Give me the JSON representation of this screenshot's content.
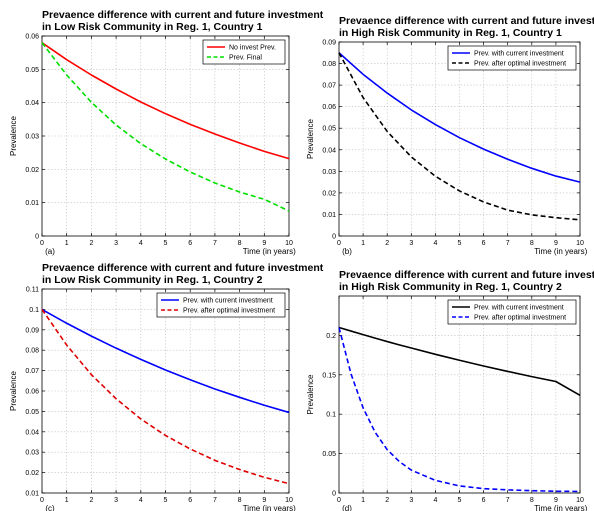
{
  "chart_data": [
    {
      "type": "line",
      "panel_label": "(a)",
      "title": [
        "Prevaence difference with current and future investment",
        "in Low Risk Community in Reg. 1, Country 1"
      ],
      "xlabel": "Time (in years)",
      "ylabel": "Prevalence",
      "xlim": [
        0,
        10
      ],
      "ylim": [
        0,
        0.06
      ],
      "xticks": [
        0,
        1,
        2,
        3,
        4,
        5,
        6,
        7,
        8,
        9,
        10
      ],
      "yticks": [
        0,
        0.01,
        0.02,
        0.03,
        0.04,
        0.05,
        0.06
      ],
      "grid": true,
      "legend_position": "top-right",
      "x": [
        0,
        1,
        2,
        3,
        4,
        5,
        6,
        7,
        8,
        9,
        10
      ],
      "series": [
        {
          "name": "No invest Prev.",
          "color": "#ff0000",
          "dash": "solid",
          "values": [
            0.058,
            0.0529,
            0.0483,
            0.0441,
            0.0402,
            0.0367,
            0.0335,
            0.0306,
            0.0279,
            0.0254,
            0.0232
          ]
        },
        {
          "name": "Prev. Final",
          "color": "#00e000",
          "dash": "dashed",
          "values": [
            0.058,
            0.0483,
            0.0401,
            0.0333,
            0.0277,
            0.0231,
            0.0192,
            0.0159,
            0.0132,
            0.011,
            0.0075
          ]
        }
      ]
    },
    {
      "type": "line",
      "panel_label": "(b)",
      "title": [
        "Prevaence difference with current and future investment",
        "in High Risk Community in Reg. 1, Country 1"
      ],
      "xlabel": "Time (in years)",
      "ylabel": "Prevalence",
      "xlim": [
        0,
        10
      ],
      "ylim": [
        0,
        0.09
      ],
      "xticks": [
        0,
        1,
        2,
        3,
        4,
        5,
        6,
        7,
        8,
        9,
        10
      ],
      "yticks": [
        0,
        0.01,
        0.02,
        0.03,
        0.04,
        0.05,
        0.06,
        0.07,
        0.08,
        0.09
      ],
      "grid": true,
      "legend_position": "top-right",
      "x": [
        0,
        1,
        2,
        3,
        4,
        5,
        6,
        7,
        8,
        9,
        10
      ],
      "series": [
        {
          "name": "Prev. with current investment",
          "color": "#0000ff",
          "dash": "solid",
          "values": [
            0.085,
            0.075,
            0.0663,
            0.0585,
            0.0517,
            0.0456,
            0.0403,
            0.0356,
            0.0314,
            0.0278,
            0.025
          ]
        },
        {
          "name": "Prev. after optimal investment",
          "color": "#000000",
          "dash": "dashed",
          "values": [
            0.085,
            0.0642,
            0.0485,
            0.0367,
            0.0277,
            0.0209,
            0.0158,
            0.012,
            0.0098,
            0.0085,
            0.0075
          ]
        }
      ]
    },
    {
      "type": "line",
      "panel_label": "(c)",
      "title": [
        "Prevaence difference with current and future investment",
        "in Low Risk Community in Reg. 1, Country 2"
      ],
      "xlabel": "Time (in years)",
      "ylabel": "Prevalence",
      "xlim": [
        0,
        10
      ],
      "ylim": [
        0.01,
        0.11
      ],
      "xticks": [
        0,
        1,
        2,
        3,
        4,
        5,
        6,
        7,
        8,
        9,
        10
      ],
      "yticks": [
        0.01,
        0.02,
        0.03,
        0.04,
        0.05,
        0.06,
        0.07,
        0.08,
        0.09,
        0.1,
        0.11
      ],
      "grid": true,
      "legend_position": "top-right",
      "x": [
        0,
        1,
        2,
        3,
        4,
        5,
        6,
        7,
        8,
        9,
        10
      ],
      "series": [
        {
          "name": "Prev. with current investment",
          "color": "#0000ff",
          "dash": "solid",
          "values": [
            0.1,
            0.0932,
            0.0869,
            0.081,
            0.0755,
            0.0703,
            0.0655,
            0.061,
            0.0569,
            0.053,
            0.0495
          ]
        },
        {
          "name": "Prev. after optimal investment",
          "color": "#e00000",
          "dash": "dashed",
          "values": [
            0.1,
            0.0825,
            0.068,
            0.0562,
            0.0463,
            0.0382,
            0.0316,
            0.026,
            0.0215,
            0.0177,
            0.0146
          ]
        }
      ]
    },
    {
      "type": "line",
      "panel_label": "(d)",
      "title": [
        "Prevaence difference with current and future investment",
        "in High Risk Community in Reg. 1, Country 2"
      ],
      "xlabel": "Time (in years)",
      "ylabel": "Prevalence",
      "xlim": [
        0,
        10
      ],
      "ylim": [
        0,
        0.25
      ],
      "xticks": [
        0,
        1,
        2,
        3,
        4,
        5,
        6,
        7,
        8,
        9,
        10
      ],
      "yticks": [
        0,
        0.05,
        0.1,
        0.15,
        0.2
      ],
      "grid": true,
      "legend_position": "top-right",
      "x": [
        0,
        0.5,
        1,
        1.5,
        2,
        2.5,
        3,
        4,
        5,
        6,
        7,
        8,
        9,
        10
      ],
      "series": [
        {
          "name": "Prev. with current investment",
          "color": "#000000",
          "dash": "solid",
          "values": [
            0.21,
            0.2055,
            0.201,
            0.1965,
            0.1922,
            0.188,
            0.184,
            0.176,
            0.1685,
            0.1612,
            0.1543,
            0.1477,
            0.1415,
            0.124
          ]
        },
        {
          "name": "Prev. after optimal investment",
          "color": "#0000ff",
          "dash": "dashed",
          "values": [
            0.21,
            0.151,
            0.108,
            0.077,
            0.055,
            0.04,
            0.029,
            0.016,
            0.009,
            0.0055,
            0.004,
            0.003,
            0.0022,
            0.002
          ]
        }
      ]
    }
  ]
}
